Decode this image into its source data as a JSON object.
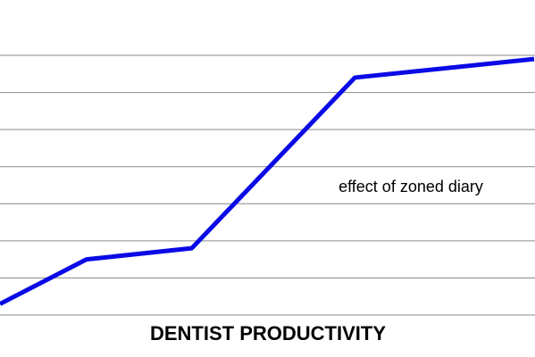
{
  "chart_data": {
    "type": "line",
    "title": "DENTIST PRODUCTIVITY",
    "annotation": "effect of zoned diary",
    "x": [
      0,
      0.97,
      2.15,
      3.98,
      5.99
    ],
    "xlim": [
      0,
      6
    ],
    "series": [
      {
        "color": "#0a0ae6",
        "values": [
          0.3,
          1.5,
          1.8,
          6.4,
          6.9
        ]
      }
    ],
    "ylim": [
      0,
      7
    ],
    "yticks": [
      0,
      1,
      2,
      3,
      4,
      5,
      6,
      7
    ],
    "grid": true
  }
}
